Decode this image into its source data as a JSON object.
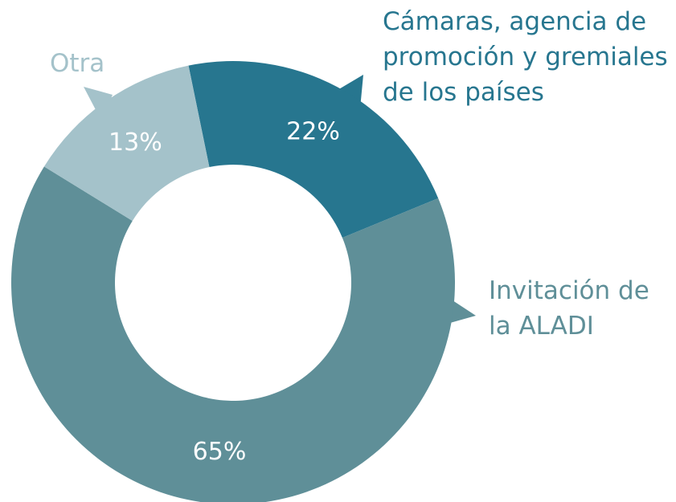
{
  "chart_data": {
    "type": "donut",
    "categories": [
      "Cámaras, agencia de\npromoción y gremiales\nde los países",
      "Invitación de\nla ALADI",
      "Otra"
    ],
    "values": [
      22,
      65,
      13
    ],
    "value_labels": [
      "22%",
      "65%",
      "13%"
    ],
    "colors": [
      "#27768f",
      "#5f8f98",
      "#a4c2ca"
    ]
  }
}
